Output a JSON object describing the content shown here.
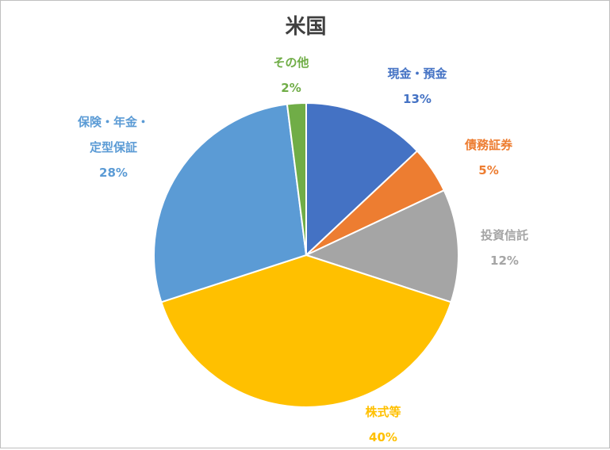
{
  "chart_data": {
    "type": "pie",
    "title": "米国",
    "start_angle_deg": 0,
    "direction": "clockwise",
    "slices": [
      {
        "label_lines": [
          "現金・預金"
        ],
        "percent_label": "13%",
        "value": 13,
        "color": "#4472C4"
      },
      {
        "label_lines": [
          "債務証券"
        ],
        "percent_label": "5%",
        "value": 5,
        "color": "#ED7D31"
      },
      {
        "label_lines": [
          "投資信託"
        ],
        "percent_label": "12%",
        "value": 12,
        "color": "#A5A5A5"
      },
      {
        "label_lines": [
          "株式等"
        ],
        "percent_label": "40%",
        "value": 40,
        "color": "#FFC000"
      },
      {
        "label_lines": [
          "保険・年金・",
          "定型保証"
        ],
        "percent_label": "28%",
        "value": 28,
        "color": "#5B9BD5"
      },
      {
        "label_lines": [
          "その他"
        ],
        "percent_label": "2%",
        "value": 2,
        "color": "#70AD47"
      }
    ],
    "legend": "none",
    "grid": false
  }
}
